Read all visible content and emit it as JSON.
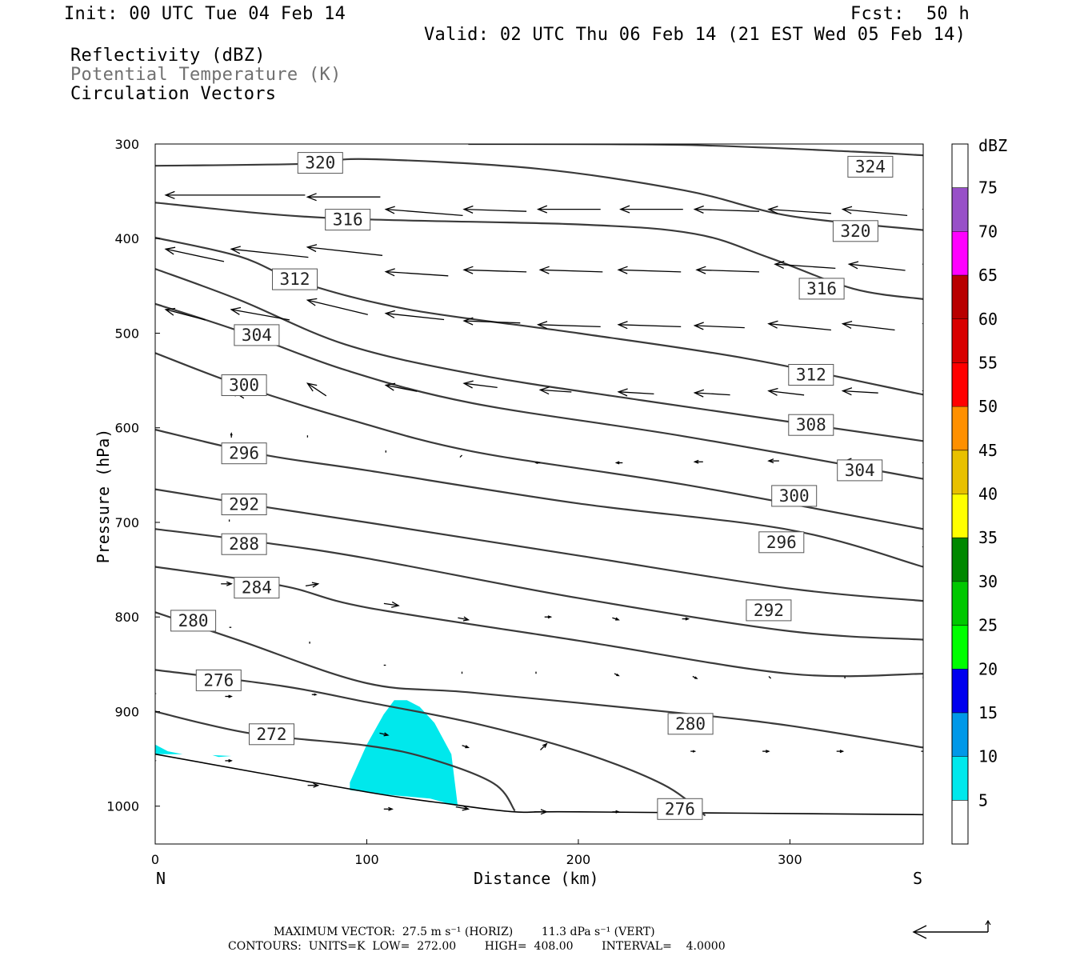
{
  "header": {
    "init": "Init: 00 UTC Tue 04 Feb 14",
    "fcst": "Fcst:  50 h",
    "valid": "Valid: 02 UTC Thu 06 Feb 14 (21 EST Wed 05 Feb 14)",
    "field1": "Reflectivity (dBZ)",
    "field2": "Potential Temperature (K)",
    "field3": "Circulation Vectors"
  },
  "colors": {
    "contour": "#3a3a3a",
    "reflectivity_5": "#00e8ec",
    "field2_text": "#707070"
  },
  "colorbar": {
    "unit_label": "dBZ",
    "levels": [
      "5",
      "10",
      "15",
      "20",
      "25",
      "30",
      "35",
      "40",
      "45",
      "50",
      "55",
      "60",
      "65",
      "70",
      "75"
    ],
    "colors": [
      "#ffffff",
      "#00e8ec",
      "#0098e8",
      "#0000ee",
      "#00ff00",
      "#00c800",
      "#008800",
      "#ffff00",
      "#e8c000",
      "#ff9000",
      "#ff0000",
      "#d80000",
      "#b80000",
      "#ff00ff",
      "#9850c8",
      "#ffffff"
    ]
  },
  "footer": {
    "line1": "MAXIMUM VECTOR:  27.5 m s⁻¹ (HORIZ)        11.3 dPa s⁻¹ (VERT)",
    "line2": "CONTOURS:  UNITS=K  LOW=  272.00        HIGH=  408.00        INTERVAL=    4.0000"
  },
  "chart_data": {
    "type": "cross-section",
    "xlabel": "Distance (km)",
    "ylabel": "Pressure (hPa)",
    "xlim": [
      0,
      363
    ],
    "ylim": [
      1040,
      300
    ],
    "x_ticks": [
      "0",
      "100",
      "200",
      "300"
    ],
    "y_ticks": [
      "300",
      "400",
      "500",
      "600",
      "700",
      "800",
      "900",
      "1000"
    ],
    "x_end_labels": {
      "left": "N",
      "right": "S"
    },
    "contour_units": "K",
    "contour_low": 272,
    "contour_high": 408,
    "contour_interval": 4,
    "isentropes": [
      {
        "value": 324,
        "points": [
          [
            148,
            300
          ],
          [
            250,
            301
          ],
          [
            330,
            308
          ],
          [
            363,
            312
          ]
        ],
        "labels": [
          {
            "x": 338,
            "p": 324,
            "text": "324"
          }
        ]
      },
      {
        "value": 320,
        "points": [
          [
            0,
            323
          ],
          [
            70,
            321
          ],
          [
            100,
            316
          ],
          [
            180,
            326
          ],
          [
            250,
            349
          ],
          [
            300,
            376
          ],
          [
            363,
            391
          ]
        ],
        "labels": [
          {
            "x": 78,
            "p": 320,
            "text": "320"
          },
          {
            "x": 331,
            "p": 392,
            "text": "320"
          }
        ]
      },
      {
        "value": 316,
        "points": [
          [
            0,
            362
          ],
          [
            80,
            378
          ],
          [
            200,
            385
          ],
          [
            255,
            395
          ],
          [
            290,
            420
          ],
          [
            330,
            453
          ],
          [
            363,
            464
          ]
        ],
        "labels": [
          {
            "x": 91,
            "p": 380,
            "text": "316"
          },
          {
            "x": 315,
            "p": 453,
            "text": "316"
          }
        ]
      },
      {
        "value": 312,
        "points": [
          [
            0,
            399
          ],
          [
            40,
            419
          ],
          [
            70,
            447
          ],
          [
            120,
            475
          ],
          [
            200,
            500
          ],
          [
            280,
            527
          ],
          [
            363,
            565
          ]
        ],
        "labels": [
          {
            "x": 66,
            "p": 443,
            "text": "312"
          },
          {
            "x": 310,
            "p": 544,
            "text": "312"
          }
        ]
      },
      {
        "value": 308,
        "points": [
          [
            0,
            432
          ],
          [
            40,
            465
          ],
          [
            90,
            512
          ],
          [
            150,
            543
          ],
          [
            230,
            571
          ],
          [
            363,
            614
          ]
        ],
        "labels": [
          {
            "x": 310,
            "p": 597,
            "text": "308"
          }
        ]
      },
      {
        "value": 304,
        "points": [
          [
            0,
            469
          ],
          [
            40,
            498
          ],
          [
            90,
            539
          ],
          [
            150,
            574
          ],
          [
            250,
            609
          ],
          [
            363,
            654
          ]
        ],
        "labels": [
          {
            "x": 48,
            "p": 502,
            "text": "304"
          },
          {
            "x": 333,
            "p": 645,
            "text": "304"
          }
        ]
      },
      {
        "value": 300,
        "points": [
          [
            0,
            521
          ],
          [
            40,
            555
          ],
          [
            90,
            590
          ],
          [
            150,
            625
          ],
          [
            250,
            660
          ],
          [
            363,
            707
          ]
        ],
        "labels": [
          {
            "x": 42,
            "p": 555,
            "text": "300"
          },
          {
            "x": 302,
            "p": 672,
            "text": "300"
          }
        ]
      },
      {
        "value": 296,
        "points": [
          [
            0,
            602
          ],
          [
            50,
            628
          ],
          [
            100,
            645
          ],
          [
            200,
            680
          ],
          [
            300,
            708
          ],
          [
            363,
            747
          ]
        ],
        "labels": [
          {
            "x": 42,
            "p": 627,
            "text": "296"
          },
          {
            "x": 296,
            "p": 721,
            "text": "296"
          }
        ]
      },
      {
        "value": 292,
        "points": [
          [
            0,
            665
          ],
          [
            50,
            683
          ],
          [
            100,
            700
          ],
          [
            200,
            735
          ],
          [
            300,
            770
          ],
          [
            363,
            783
          ]
        ],
        "labels": [
          {
            "x": 42,
            "p": 681,
            "text": "292"
          },
          {
            "x": 290,
            "p": 793,
            "text": "292"
          }
        ]
      },
      {
        "value": 288,
        "points": [
          [
            0,
            707
          ],
          [
            50,
            721
          ],
          [
            100,
            738
          ],
          [
            200,
            780
          ],
          [
            300,
            815
          ],
          [
            363,
            824
          ]
        ],
        "labels": [
          {
            "x": 42,
            "p": 723,
            "text": "288"
          }
        ]
      },
      {
        "value": 284,
        "points": [
          [
            0,
            747
          ],
          [
            60,
            767
          ],
          [
            100,
            790
          ],
          [
            200,
            825
          ],
          [
            300,
            860
          ],
          [
            363,
            860
          ]
        ],
        "labels": [
          {
            "x": 48,
            "p": 769,
            "text": "284"
          }
        ]
      },
      {
        "value": 280,
        "points": [
          [
            0,
            795
          ],
          [
            40,
            825
          ],
          [
            100,
            870
          ],
          [
            150,
            880
          ],
          [
            250,
            902
          ],
          [
            300,
            915
          ],
          [
            363,
            938
          ]
        ],
        "labels": [
          {
            "x": 18,
            "p": 804,
            "text": "280"
          },
          {
            "x": 253,
            "p": 913,
            "text": "280"
          }
        ]
      },
      {
        "value": 276,
        "points": [
          [
            0,
            856
          ],
          [
            60,
            873
          ],
          [
            100,
            890
          ],
          [
            150,
            912
          ],
          [
            200,
            942
          ],
          [
            240,
            977
          ],
          [
            260,
            1010
          ]
        ],
        "labels": [
          {
            "x": 30,
            "p": 867,
            "text": "276"
          },
          {
            "x": 248,
            "p": 1003,
            "text": "276"
          }
        ]
      },
      {
        "value": 272,
        "points": [
          [
            0,
            900
          ],
          [
            45,
            923
          ],
          [
            100,
            936
          ],
          [
            130,
            950
          ],
          [
            160,
            976
          ],
          [
            170,
            1005
          ]
        ],
        "labels": [
          {
            "x": 55,
            "p": 924,
            "text": "272"
          }
        ]
      }
    ],
    "terrain": [
      [
        0,
        945
      ],
      [
        100,
        985
      ],
      [
        140,
        998
      ],
      [
        170,
        1006
      ],
      [
        200,
        1006
      ],
      [
        363,
        1009
      ]
    ],
    "reflectivity_areas": [
      {
        "level": 5,
        "polygon": [
          [
            92,
            975
          ],
          [
            100,
            935
          ],
          [
            108,
            903
          ],
          [
            113,
            888
          ],
          [
            119,
            888
          ],
          [
            125,
            895
          ],
          [
            132,
            912
          ],
          [
            140,
            945
          ],
          [
            143,
            1000
          ],
          [
            130,
            992
          ],
          [
            110,
            988
          ],
          [
            92,
            983
          ]
        ]
      },
      {
        "level": 5,
        "polygon": [
          [
            0,
            935
          ],
          [
            6,
            942
          ],
          [
            13,
            945
          ],
          [
            0,
            945
          ]
        ]
      },
      {
        "level": 5,
        "polygon": [
          [
            27,
            946
          ],
          [
            36,
            947
          ],
          [
            30,
            948
          ]
        ]
      }
    ],
    "vectors": [
      [
        5,
        354,
        -67,
        0
      ],
      [
        72,
        356,
        -35,
        0
      ],
      [
        5,
        411,
        -28,
        -6
      ],
      [
        36,
        411,
        -37,
        -4
      ],
      [
        72,
        409,
        -36,
        -4
      ],
      [
        5,
        475,
        -19,
        -5
      ],
      [
        36,
        475,
        -28,
        -5
      ],
      [
        72,
        465,
        -29,
        -7
      ],
      [
        109,
        369,
        -37,
        -3
      ],
      [
        109,
        435,
        -30,
        -2
      ],
      [
        109,
        479,
        -28,
        -3
      ],
      [
        146,
        369,
        -30,
        -1
      ],
      [
        146,
        433,
        -30,
        -1
      ],
      [
        146,
        487,
        -27,
        -1
      ],
      [
        181,
        369,
        -30,
        0
      ],
      [
        182,
        433,
        -30,
        -1
      ],
      [
        181,
        491,
        -30,
        -1
      ],
      [
        220,
        369,
        -30,
        0
      ],
      [
        219,
        433,
        -30,
        -1
      ],
      [
        219,
        491,
        -30,
        -1
      ],
      [
        255,
        369,
        -31,
        -1
      ],
      [
        256,
        433,
        -30,
        -1
      ],
      [
        255,
        492,
        -24,
        -1
      ],
      [
        290,
        369,
        -30,
        -2
      ],
      [
        293,
        427,
        -29,
        -2
      ],
      [
        290,
        490,
        -30,
        -3
      ],
      [
        325,
        369,
        -31,
        -3
      ],
      [
        328,
        427,
        -27,
        -3
      ],
      [
        325,
        490,
        -25,
        -3
      ],
      [
        363,
        369,
        -25,
        -5
      ],
      [
        363,
        427,
        -29,
        -4
      ],
      [
        363,
        490,
        -25,
        -2
      ],
      [
        36,
        560,
        -6,
        -4
      ],
      [
        72,
        553,
        -9,
        -6
      ],
      [
        109,
        555,
        -15,
        -3
      ],
      [
        146,
        553,
        -16,
        -2
      ],
      [
        182,
        560,
        -15,
        -1
      ],
      [
        219,
        562,
        -17,
        -1
      ],
      [
        255,
        563,
        -17,
        -1
      ],
      [
        290,
        561,
        -17,
        -2
      ],
      [
        325,
        561,
        -17,
        -1
      ],
      [
        363,
        561,
        -17,
        -1
      ],
      [
        36,
        606,
        0,
        -2
      ],
      [
        72,
        608,
        0,
        -1
      ],
      [
        109,
        624,
        0,
        -1
      ],
      [
        145,
        629,
        1,
        -1
      ],
      [
        180,
        637,
        -2,
        0
      ],
      [
        218,
        637,
        -3,
        0
      ],
      [
        255,
        636,
        -4,
        0
      ],
      [
        290,
        635,
        -5,
        0
      ],
      [
        325,
        636,
        -9,
        0
      ],
      [
        363,
        637,
        -13,
        0
      ],
      [
        35,
        697,
        0,
        -1
      ],
      [
        37,
        723,
        0,
        -1
      ],
      [
        363,
        726,
        -7,
        -1
      ],
      [
        0,
        760,
        1,
        0
      ],
      [
        36,
        765,
        5,
        0
      ],
      [
        77,
        765,
        6,
        -1
      ],
      [
        115,
        788,
        7,
        1
      ],
      [
        148,
        803,
        5,
        1
      ],
      [
        187,
        800,
        3,
        0
      ],
      [
        219,
        803,
        3,
        1
      ],
      [
        252,
        802,
        3,
        0
      ],
      [
        289,
        803,
        0,
        0
      ],
      [
        0,
        808,
        0,
        0
      ],
      [
        36,
        811,
        1,
        0
      ],
      [
        73,
        826,
        0,
        -1
      ],
      [
        109,
        851,
        1,
        0
      ],
      [
        145,
        860,
        0,
        1
      ],
      [
        180,
        860,
        0,
        1
      ],
      [
        219,
        862,
        2,
        1
      ],
      [
        256,
        865,
        2,
        1
      ],
      [
        291,
        865,
        1,
        1
      ],
      [
        326,
        865,
        0,
        1
      ],
      [
        363,
        865,
        0,
        1
      ],
      [
        0,
        881,
        3,
        0
      ],
      [
        36,
        884,
        3,
        0
      ],
      [
        76,
        882,
        2,
        0
      ],
      [
        110,
        925,
        4,
        1
      ],
      [
        148,
        938,
        3,
        1
      ],
      [
        185,
        934,
        3,
        -3
      ],
      [
        255,
        942,
        2,
        0
      ],
      [
        290,
        942,
        3,
        0
      ],
      [
        325,
        942,
        3,
        0
      ],
      [
        363,
        942,
        1,
        0
      ],
      [
        0,
        952,
        3,
        0
      ],
      [
        36,
        952,
        3,
        0
      ],
      [
        77,
        978,
        5,
        0
      ],
      [
        112,
        1003,
        4,
        0
      ],
      [
        148,
        1003,
        6,
        1
      ],
      [
        185,
        1006,
        6,
        0
      ],
      [
        219,
        1006,
        3,
        0
      ],
      [
        255,
        1006,
        3,
        0
      ],
      [
        290,
        1006,
        0,
        0
      ],
      [
        325,
        1006,
        0,
        0
      ]
    ]
  }
}
